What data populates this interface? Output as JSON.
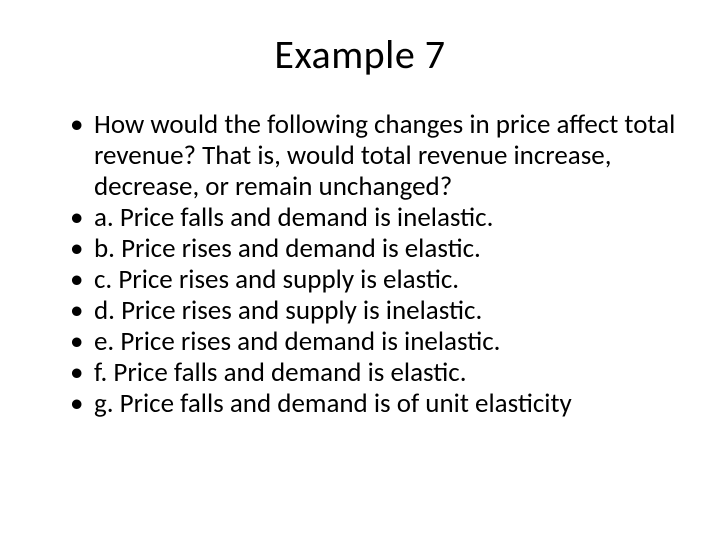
{
  "slide": {
    "title": "Example 7",
    "bullets": [
      "How would the following changes in price affect total revenue? That is, would total revenue increase, decrease, or remain unchanged?",
      "a. Price falls and demand is inelastic.",
      "b. Price rises and demand is elastic.",
      "c. Price rises and supply is elastic.",
      "d. Price rises and supply is inelastic.",
      "e. Price rises and demand is inelastic.",
      "f. Price falls and demand is elastic.",
      "g. Price falls and demand is of unit elasticity"
    ]
  },
  "colors": {
    "background": "#ffffff",
    "text": "#000000"
  },
  "typography": {
    "title_fontsize": 40,
    "body_fontsize": 27,
    "font_family": "Calibri"
  }
}
